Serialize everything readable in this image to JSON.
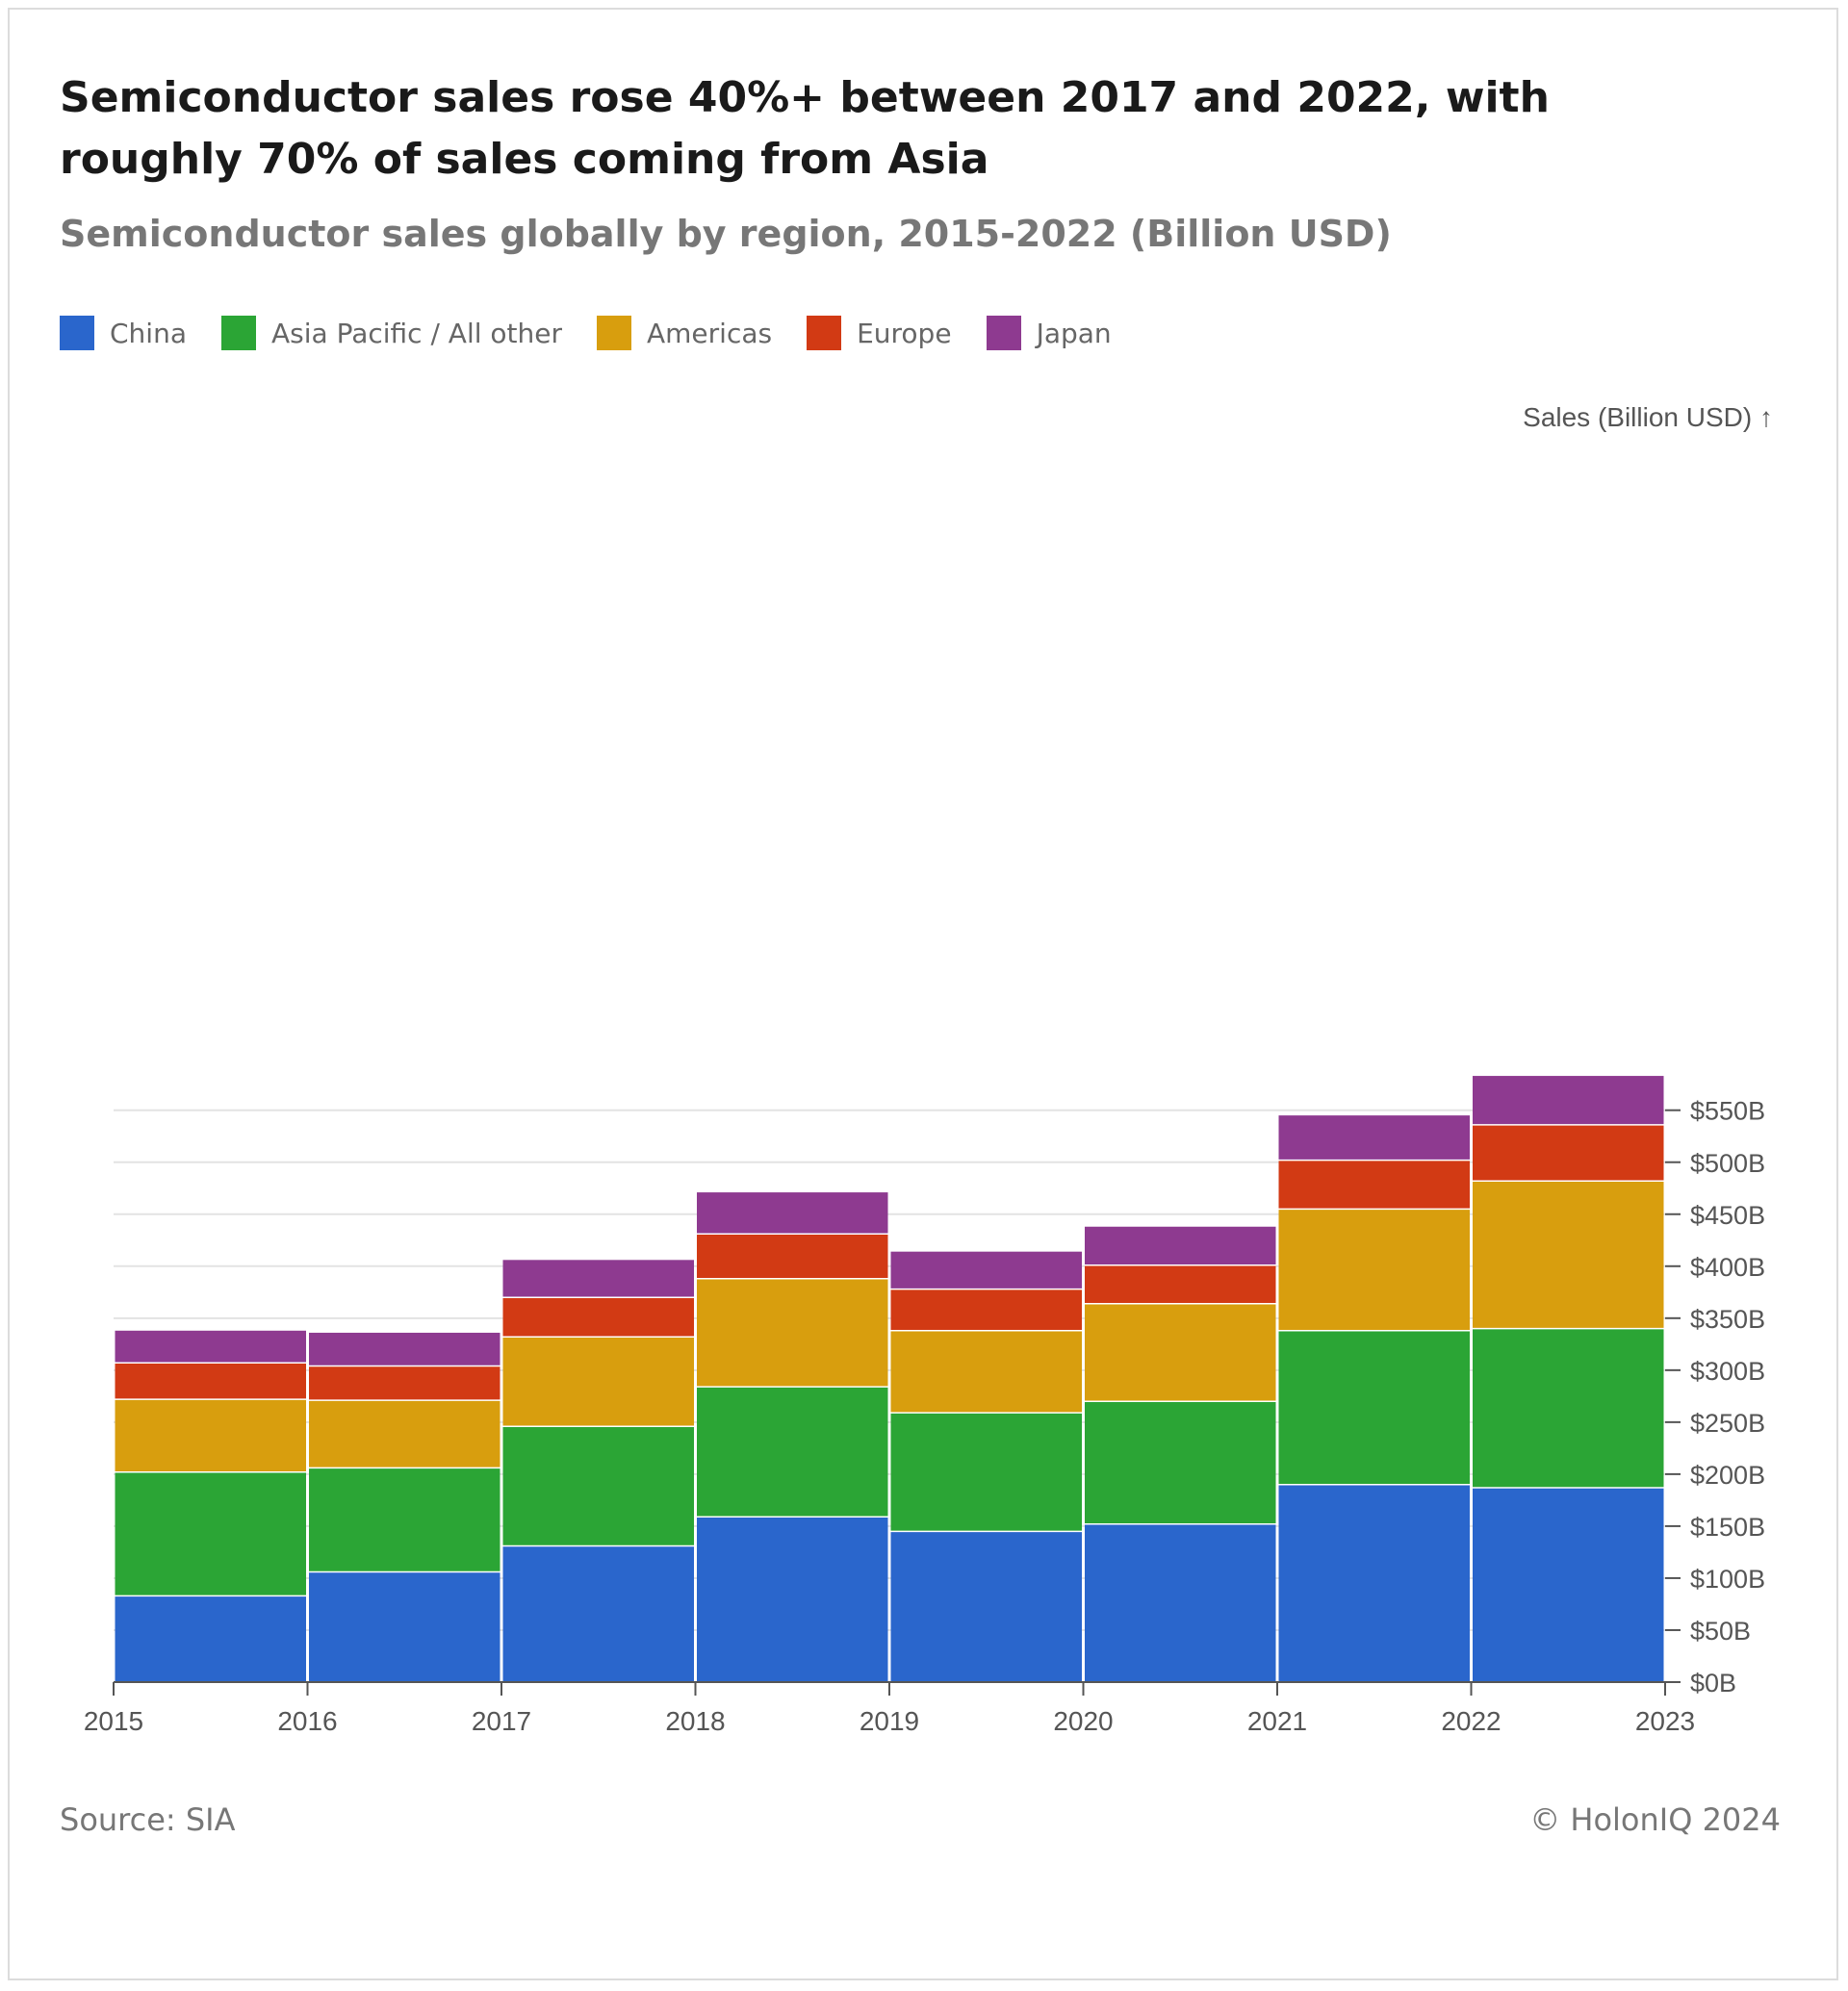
{
  "title": "Semiconductor sales rose 40%+ between 2017 and 2022, with roughly 70% of sales coming from Asia",
  "subtitle": "Semiconductor sales globally by region, 2015-2022 (Billion USD)",
  "source": "Source: SIA",
  "credit": "© HolonIQ 2024",
  "chart_data": {
    "type": "bar",
    "stacked": true,
    "categories": [
      "2015",
      "2016",
      "2017",
      "2018",
      "2019",
      "2020",
      "2021",
      "2022"
    ],
    "x_ticks": [
      "2015",
      "2016",
      "2017",
      "2018",
      "2019",
      "2020",
      "2021",
      "2022",
      "2023"
    ],
    "ylabel": "Sales (Billion USD) ↑",
    "ylim": [
      0,
      600
    ],
    "y_ticks": [
      0,
      50,
      100,
      150,
      200,
      250,
      300,
      350,
      400,
      450,
      500,
      550
    ],
    "y_tick_labels": [
      "$0B",
      "$50B",
      "$100B",
      "$150B",
      "$200B",
      "$250B",
      "$300B",
      "$350B",
      "$400B",
      "$450B",
      "$500B",
      "$550B"
    ],
    "y_axis_position": "right",
    "grid": true,
    "legend_position": "top-left",
    "series": [
      {
        "name": "China",
        "color": "#2a66cc",
        "values": [
          83,
          106,
          131,
          159,
          145,
          152,
          190,
          187
        ]
      },
      {
        "name": "Asia Pacific / All other",
        "color": "#2ba535",
        "values": [
          119,
          100,
          115,
          125,
          114,
          118,
          148,
          153
        ]
      },
      {
        "name": "Americas",
        "color": "#d89e0e",
        "values": [
          70,
          65,
          86,
          104,
          79,
          94,
          117,
          142
        ]
      },
      {
        "name": "Europe",
        "color": "#d23a14",
        "values": [
          35,
          33,
          38,
          43,
          40,
          37,
          47,
          54
        ]
      },
      {
        "name": "Japan",
        "color": "#8e3a90",
        "values": [
          31,
          32,
          36,
          40,
          36,
          37,
          43,
          47
        ]
      }
    ]
  }
}
